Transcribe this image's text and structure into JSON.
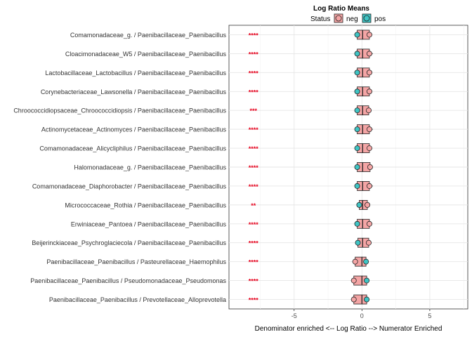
{
  "chart_data": {
    "type": "boxplot",
    "legend": {
      "title": "Log Ratio Means",
      "group_label": "Status",
      "placement": "top",
      "entries": [
        {
          "name": "neg",
          "color": "#f4a5a5"
        },
        {
          "name": "pos",
          "color": "#3fc4c4"
        }
      ]
    },
    "xlabel": "Denominator enriched <-- Log Ratio --> Numerator Enriched",
    "xlim": [
      -9.8,
      7.8
    ],
    "xticks": [
      -5,
      0,
      5
    ],
    "xtick_labels": [
      "-5",
      "0",
      "5"
    ],
    "grid": true,
    "significance_x": -8,
    "significance_color": "#e8001c",
    "box_stroke": "#222222",
    "rows": [
      {
        "label": "Comamonadaceae_g. / Paenibacillaceae_Paenibacillus",
        "sig": "****",
        "q1": -0.35,
        "median": 0.05,
        "q3": 0.55,
        "whisker_low": -0.45,
        "whisker_high": 0.75,
        "neg_mean": 0.55,
        "pos_mean": -0.35
      },
      {
        "label": "Cloacimonadaceae_W5 / Paenibacillaceae_Paenibacillus",
        "sig": "****",
        "q1": -0.35,
        "median": 0.05,
        "q3": 0.55,
        "whisker_low": -0.45,
        "whisker_high": 0.8,
        "neg_mean": 0.55,
        "pos_mean": -0.35
      },
      {
        "label": "Lactobacillaceae_Lactobacillus / Paenibacillaceae_Paenibacillus",
        "sig": "****",
        "q1": -0.35,
        "median": 0.05,
        "q3": 0.55,
        "whisker_low": -0.45,
        "whisker_high": 0.75,
        "neg_mean": 0.55,
        "pos_mean": -0.35
      },
      {
        "label": "Corynebacteriaceae_Lawsonella / Paenibacillaceae_Paenibacillus",
        "sig": "****",
        "q1": -0.35,
        "median": 0.05,
        "q3": 0.55,
        "whisker_low": -0.45,
        "whisker_high": 0.75,
        "neg_mean": 0.55,
        "pos_mean": -0.35
      },
      {
        "label": "Chroococcidiopsaceae_Chroococcidiopsis / Paenibacillaceae_Paenibacillus",
        "sig": "***",
        "q1": -0.35,
        "median": 0.05,
        "q3": 0.5,
        "whisker_low": -0.45,
        "whisker_high": 0.7,
        "neg_mean": 0.5,
        "pos_mean": -0.35
      },
      {
        "label": "Actinomycetaceae_Actinomyces / Paenibacillaceae_Paenibacillus",
        "sig": "****",
        "q1": -0.35,
        "median": 0.05,
        "q3": 0.55,
        "whisker_low": -0.45,
        "whisker_high": 0.8,
        "neg_mean": 0.55,
        "pos_mean": -0.35
      },
      {
        "label": "Comamonadaceae_Alicycliphilus / Paenibacillaceae_Paenibacillus",
        "sig": "****",
        "q1": -0.35,
        "median": 0.05,
        "q3": 0.55,
        "whisker_low": -0.45,
        "whisker_high": 0.75,
        "neg_mean": 0.55,
        "pos_mean": -0.35
      },
      {
        "label": "Halomonadaceae_g. / Paenibacillaceae_Paenibacillus",
        "sig": "****",
        "q1": -0.35,
        "median": 0.05,
        "q3": 0.6,
        "whisker_low": -0.45,
        "whisker_high": 0.8,
        "neg_mean": 0.6,
        "pos_mean": -0.35
      },
      {
        "label": "Comamonadaceae_Diaphorobacter / Paenibacillaceae_Paenibacillus",
        "sig": "****",
        "q1": -0.35,
        "median": 0.05,
        "q3": 0.55,
        "whisker_low": -0.45,
        "whisker_high": 0.8,
        "neg_mean": 0.55,
        "pos_mean": -0.35
      },
      {
        "label": "Micrococcaceae_Rothia / Paenibacillaceae_Paenibacillus",
        "sig": "**",
        "q1": -0.2,
        "median": 0.05,
        "q3": 0.4,
        "whisker_low": -0.3,
        "whisker_high": 0.5,
        "neg_mean": 0.4,
        "pos_mean": -0.2
      },
      {
        "label": "Erwiniaceae_Pantoea / Paenibacillaceae_Paenibacillus",
        "sig": "****",
        "q1": -0.35,
        "median": 0.05,
        "q3": 0.55,
        "whisker_low": -0.45,
        "whisker_high": 0.75,
        "neg_mean": 0.55,
        "pos_mean": -0.35
      },
      {
        "label": "Beijerinckiaceae_Psychroglaciecola / Paenibacillaceae_Paenibacillus",
        "sig": "****",
        "q1": -0.3,
        "median": 0.05,
        "q3": 0.5,
        "whisker_low": -0.4,
        "whisker_high": 0.7,
        "neg_mean": 0.5,
        "pos_mean": -0.3
      },
      {
        "label": "Paenibacillaceae_Paenibacillus / Pasteurellaceae_Haemophilus",
        "sig": "****",
        "q1": -0.5,
        "median": 0.0,
        "q3": 0.3,
        "whisker_low": -0.7,
        "whisker_high": 0.4,
        "neg_mean": -0.5,
        "pos_mean": 0.3
      },
      {
        "label": "Paenibacillaceae_Paenibacillus / Pseudomonadaceae_Pseudomonas",
        "sig": "****",
        "q1": -0.6,
        "median": 0.0,
        "q3": 0.35,
        "whisker_low": -0.8,
        "whisker_high": 0.45,
        "neg_mean": -0.6,
        "pos_mean": 0.35
      },
      {
        "label": "Paenibacillaceae_Paenibacillus / Prevotellaceae_Alloprevotella",
        "sig": "****",
        "q1": -0.6,
        "median": 0.0,
        "q3": 0.35,
        "whisker_low": -0.8,
        "whisker_high": 0.45,
        "neg_mean": -0.6,
        "pos_mean": 0.35
      }
    ]
  }
}
